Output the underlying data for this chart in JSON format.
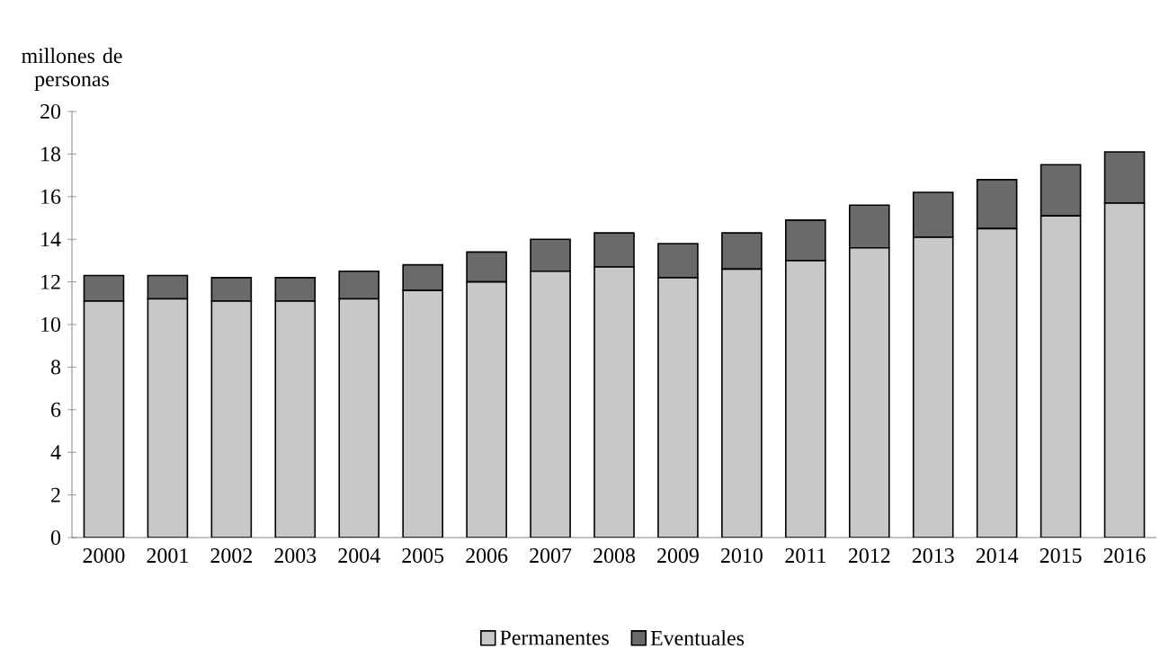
{
  "chart_data": {
    "type": "bar",
    "stacked": true,
    "ylabel": "millones de personas",
    "categories": [
      "2000",
      "2001",
      "2002",
      "2003",
      "2004",
      "2005",
      "2006",
      "2007",
      "2008",
      "2009",
      "2010",
      "2011",
      "2012",
      "2013",
      "2014",
      "2015",
      "2016"
    ],
    "series": [
      {
        "name": "Permanentes",
        "color": "#c8c8c8",
        "values": [
          11.1,
          11.2,
          11.1,
          11.1,
          11.2,
          11.6,
          12.0,
          12.5,
          12.7,
          12.2,
          12.6,
          13.0,
          13.6,
          14.1,
          14.5,
          15.1,
          15.7
        ]
      },
      {
        "name": "Eventuales",
        "color": "#6a6a6a",
        "values": [
          1.2,
          1.1,
          1.1,
          1.1,
          1.3,
          1.2,
          1.4,
          1.5,
          1.6,
          1.6,
          1.7,
          1.9,
          2.0,
          2.1,
          2.3,
          2.4,
          2.4
        ]
      }
    ],
    "ylim": [
      0,
      20
    ],
    "yticks": [
      0,
      2,
      4,
      6,
      8,
      10,
      12,
      14,
      16,
      18,
      20
    ],
    "grid": false,
    "legend": "bottom"
  }
}
